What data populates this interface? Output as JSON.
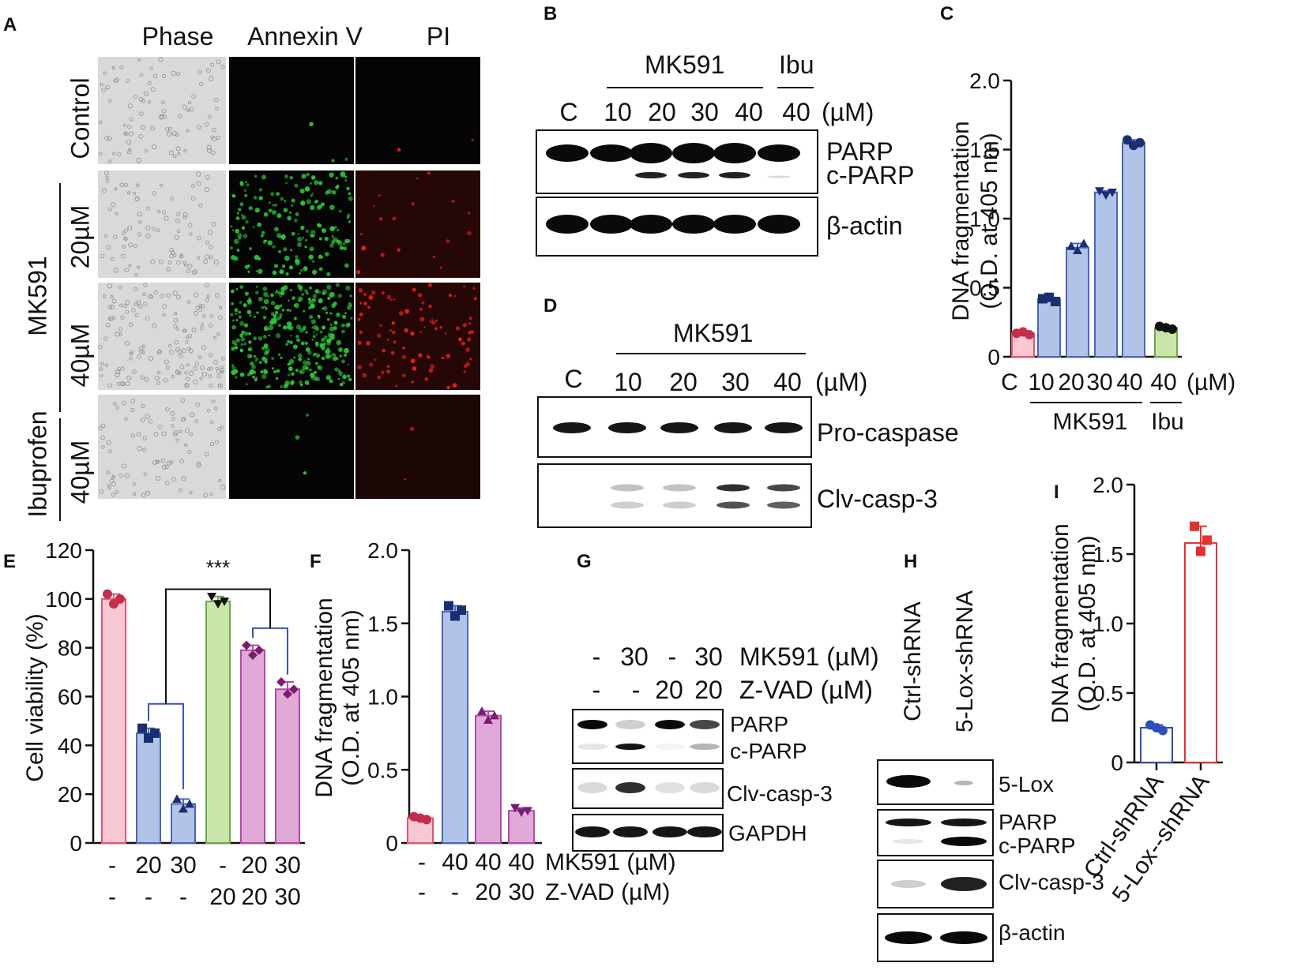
{
  "panels": {
    "A": {
      "label": "A",
      "columns": [
        "Phase",
        "Annexin V",
        "PI"
      ],
      "rows": [
        "Control",
        "20µM",
        "40µM",
        "40µM"
      ],
      "groups": [
        "MK591",
        "Ibuprofen"
      ],
      "green_dots": [
        3,
        180,
        320,
        3
      ],
      "red_dots": [
        2,
        18,
        90,
        2
      ],
      "colors": {
        "annexin": "#2fc23a",
        "pi": "#e51f1f",
        "phase_bg": "#d9d9d9"
      }
    },
    "B": {
      "label": "B",
      "group_label": "MK591",
      "ibu_label": "Ibu",
      "lanes": [
        "C",
        "10",
        "20",
        "30",
        "40",
        "40"
      ],
      "unit": "(µM)",
      "bands": [
        "PARP",
        "c-PARP",
        "β-actin"
      ]
    },
    "D": {
      "label": "D",
      "group_label": "MK591",
      "lanes": [
        "C",
        "10",
        "20",
        "30",
        "40"
      ],
      "unit": "(µM)",
      "bands": [
        "Pro-caspase",
        "Clv-casp-3"
      ]
    },
    "G": {
      "label": "G",
      "row1": [
        "-",
        "30",
        "-",
        "30"
      ],
      "row1_label": "MK591 (µM)",
      "row2": [
        "-",
        "-",
        "20",
        "20"
      ],
      "row2_label": "Z-VAD (µM)",
      "bands": [
        "PARP",
        "c-PARP",
        "Clv-casp-3",
        "GAPDH"
      ]
    },
    "H": {
      "label": "H",
      "lanes": [
        "Ctrl-shRNA",
        "5-Lox-shRNA"
      ],
      "bands": [
        "5-Lox",
        "PARP",
        "c-PARP",
        "Clv-casp-3",
        "β-actin"
      ]
    }
  },
  "chart_data": [
    {
      "panel": "C",
      "label": "C",
      "type": "bar",
      "ylabel_lines": [
        "DNA fragmentation",
        "(O.D. at 405 nm)"
      ],
      "ylim": [
        0,
        2.0
      ],
      "yticks": [
        "0",
        "0.5",
        "1.0",
        "1.5",
        "2.0"
      ],
      "categories": [
        "C",
        "10",
        "20",
        "30",
        "40",
        "40"
      ],
      "unit": "(µM)",
      "values": [
        0.17,
        0.42,
        0.79,
        1.19,
        1.55,
        0.21
      ],
      "points": [
        [
          0.17,
          0.18,
          0.16
        ],
        [
          0.42,
          0.43,
          0.4
        ],
        [
          0.8,
          0.77,
          0.82
        ],
        [
          1.2,
          1.17,
          1.19
        ],
        [
          1.57,
          1.53,
          1.55
        ],
        [
          0.22,
          0.21,
          0.2
        ]
      ],
      "markers": [
        "circle",
        "square",
        "triangle",
        "triangle-down",
        "circle",
        "circle"
      ],
      "fills": [
        "#f7c7d3",
        "#b2c3e8",
        "#b2c3e8",
        "#b2c3e8",
        "#b2c3e8",
        "#c9e6a8"
      ],
      "strokes": [
        "#e2556f",
        "#4a66b5",
        "#4a66b5",
        "#4a66b5",
        "#4a66b5",
        "#6aa84f"
      ],
      "group_labels": [
        "MK591",
        "Ibu"
      ]
    },
    {
      "panel": "E",
      "label": "E",
      "type": "bar",
      "ylabel": "Cell viability (%)",
      "ylim": [
        0,
        120
      ],
      "yticks": [
        "0",
        "20",
        "40",
        "60",
        "80",
        "100",
        "120"
      ],
      "row1": [
        "-",
        "20",
        "30",
        "-",
        "20",
        "30"
      ],
      "row2": [
        "-",
        "-",
        "-",
        "20",
        "20",
        "30"
      ],
      "values": [
        100,
        45,
        16,
        99,
        79,
        63
      ],
      "points": [
        [
          102,
          98,
          100
        ],
        [
          47,
          43,
          45
        ],
        [
          18,
          14,
          16
        ],
        [
          101,
          98,
          99
        ],
        [
          81,
          77,
          79
        ],
        [
          66,
          61,
          63
        ]
      ],
      "markers": [
        "circle",
        "square",
        "triangle",
        "triangle-down",
        "diamond",
        "diamond"
      ],
      "fills": [
        "#f7c7d3",
        "#b2c3e8",
        "#b2c3e8",
        "#c9e6a8",
        "#e0a9d8",
        "#e0a9d8"
      ],
      "strokes": [
        "#e2556f",
        "#4a66b5",
        "#4a66b5",
        "#6aa84f",
        "#b24aa6",
        "#b24aa6"
      ],
      "significance": "***"
    },
    {
      "panel": "F",
      "label": "F",
      "type": "bar",
      "ylabel_lines": [
        "DNA fragmentation",
        "(O.D. at 405 nm)"
      ],
      "ylim": [
        0,
        2.0
      ],
      "yticks": [
        "0",
        "0.5",
        "1.0",
        "1.5",
        "2.0"
      ],
      "row1": [
        "-",
        "40",
        "40",
        "40"
      ],
      "row1_label": "MK591 (µM)",
      "row2": [
        "-",
        "-",
        "20",
        "30"
      ],
      "row2_label": "Z-VAD (µM)",
      "values": [
        0.17,
        1.58,
        0.87,
        0.22
      ],
      "points": [
        [
          0.18,
          0.17,
          0.16
        ],
        [
          1.62,
          1.55,
          1.59
        ],
        [
          0.9,
          0.84,
          0.87
        ],
        [
          0.24,
          0.21,
          0.22
        ]
      ],
      "markers": [
        "circle",
        "square",
        "triangle",
        "triangle-down"
      ],
      "fills": [
        "#f7c7d3",
        "#b2c3e8",
        "#e0a9d8",
        "#e0a9d8"
      ],
      "strokes": [
        "#e2556f",
        "#4a66b5",
        "#b24aa6",
        "#b24aa6"
      ]
    },
    {
      "panel": "I",
      "label": "I",
      "type": "bar",
      "ylabel_lines": [
        "DNA fragmentation",
        "(O.D. at 405 nm)"
      ],
      "ylim": [
        0,
        2.0
      ],
      "yticks": [
        "0",
        "0.5",
        "1.0",
        "1.5",
        "2.0"
      ],
      "categories": [
        "Ctrl-shRNA",
        "5-Lox--shRNA"
      ],
      "values": [
        0.25,
        1.58
      ],
      "points": [
        [
          0.27,
          0.25,
          0.23
        ],
        [
          1.7,
          1.52,
          1.6
        ]
      ],
      "markers": [
        "circle",
        "square"
      ],
      "fills": [
        "#ffffff",
        "#ffffff"
      ],
      "strokes": [
        "#2c4fb8",
        "#e53030"
      ]
    }
  ]
}
